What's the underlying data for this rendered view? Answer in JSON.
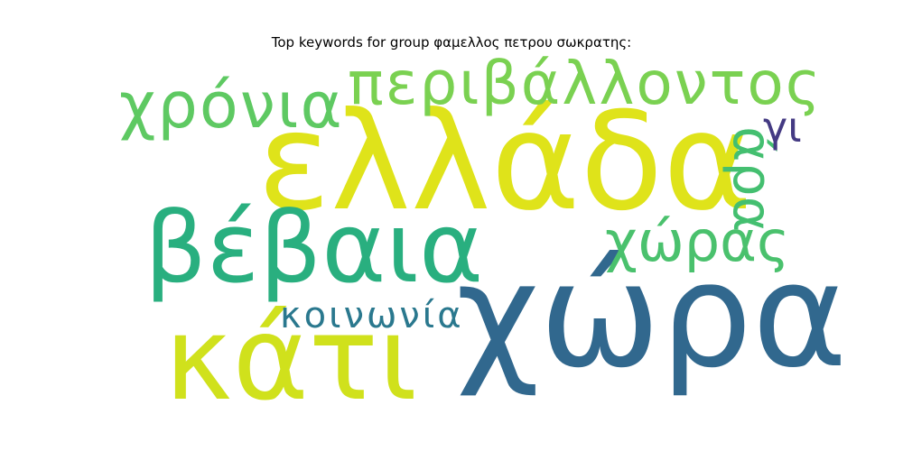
{
  "title": "Top keywords for group φαμελλος πετρου σωκρατης:",
  "words": [
    {
      "text": "ελλάδα",
      "color": "#dfe31a"
    },
    {
      "text": "χώρα",
      "color": "#31688e"
    },
    {
      "text": "κάτι",
      "color": "#d0e11c"
    },
    {
      "text": "βέβαια",
      "color": "#29af7f"
    },
    {
      "text": "περιβάλλοντος",
      "color": "#7ad151"
    },
    {
      "text": "χρόνια",
      "color": "#5ec962"
    },
    {
      "text": "χώρας",
      "color": "#4ac16d"
    },
    {
      "text": "άρα",
      "color": "#44bf70"
    },
    {
      "text": "κοινωνία",
      "color": "#2a788e"
    },
    {
      "text": "γι",
      "color": "#443a83"
    }
  ]
}
